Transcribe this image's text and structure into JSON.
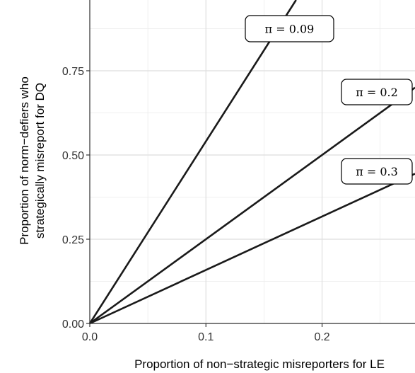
{
  "chart_data": {
    "type": "line",
    "xlabel": "Proportion of non−strategic misreporters for LE",
    "ylabel_lines": [
      "Proportion of norm−defiers who",
      "strategically misreport for DQ"
    ],
    "xlim": [
      0,
      0.28
    ],
    "ylim": [
      0,
      0.96
    ],
    "x_ticks": [
      0.0,
      0.1,
      0.2
    ],
    "x_tick_labels": [
      "0.0",
      "0.1",
      "0.2"
    ],
    "y_ticks": [
      0.0,
      0.25,
      0.5,
      0.75
    ],
    "y_tick_labels": [
      "0.00",
      "0.25",
      "0.50",
      "0.75"
    ],
    "grid": true,
    "series": [
      {
        "label": "π = 0.09",
        "x": [
          0,
          0.1776
        ],
        "y": [
          0,
          0.96
        ]
      },
      {
        "label": "π = 0.2",
        "x": [
          0,
          0.28
        ],
        "y": [
          0,
          0.7
        ]
      },
      {
        "label": "π = 0.3",
        "x": [
          0,
          0.28
        ],
        "y": [
          0,
          0.4444
        ]
      }
    ]
  }
}
